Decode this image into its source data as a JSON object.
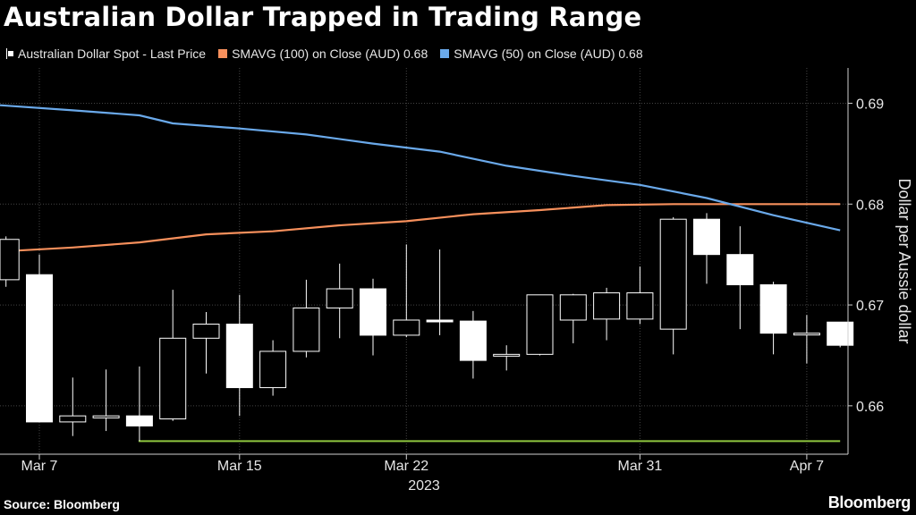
{
  "title": "Australian Dollar Trapped in Trading Range",
  "legend": [
    {
      "label": "Australian Dollar Spot - Last Price",
      "color": "#ffffff",
      "kind": "candle"
    },
    {
      "label": "SMAVG (100)  on Close (AUD) 0.68",
      "color": "#f7905c",
      "kind": "line"
    },
    {
      "label": "SMAVG (50)  on Close (AUD) 0.68",
      "color": "#6aa9ea",
      "kind": "line"
    }
  ],
  "source": "Source: Bloomberg",
  "brand": "Bloomberg",
  "colors": {
    "background": "#000000",
    "candle": "#ffffff",
    "sma100": "#f7905c",
    "sma50": "#6aa9ea",
    "support": "#8ec63f",
    "grid": "#444444"
  },
  "chart_data": {
    "type": "candlestick",
    "ylabel": "Dollar per Aussie dollar",
    "ylim": [
      0.6552,
      0.6935
    ],
    "yticks": [
      0.66,
      0.67,
      0.68,
      0.69
    ],
    "ytick_labels": [
      "0.66",
      "0.67",
      "0.68",
      "0.69"
    ],
    "xticks": [
      {
        "label": "Mar 7",
        "date": "2023-03-07"
      },
      {
        "label": "Mar 15",
        "date": "2023-03-15"
      },
      {
        "label": "Mar 22",
        "date": "2023-03-22"
      },
      {
        "label": "Mar 31",
        "date": "2023-03-31"
      },
      {
        "label": "Apr 7",
        "date": "2023-04-07"
      }
    ],
    "year_label": "2023",
    "candles": [
      {
        "date": "2023-03-06",
        "open": 0.6725,
        "high": 0.6768,
        "low": 0.6718,
        "close": 0.6765
      },
      {
        "date": "2023-03-07",
        "open": 0.673,
        "high": 0.675,
        "low": 0.6584,
        "close": 0.6584
      },
      {
        "date": "2023-03-08",
        "open": 0.6584,
        "high": 0.6628,
        "low": 0.657,
        "close": 0.659
      },
      {
        "date": "2023-03-09",
        "open": 0.6588,
        "high": 0.6636,
        "low": 0.6575,
        "close": 0.659
      },
      {
        "date": "2023-03-10",
        "open": 0.659,
        "high": 0.6639,
        "low": 0.6565,
        "close": 0.658
      },
      {
        "date": "2023-03-13",
        "open": 0.6587,
        "high": 0.6715,
        "low": 0.6585,
        "close": 0.6667
      },
      {
        "date": "2023-03-14",
        "open": 0.6667,
        "high": 0.6693,
        "low": 0.6632,
        "close": 0.6681
      },
      {
        "date": "2023-03-15",
        "open": 0.6681,
        "high": 0.671,
        "low": 0.659,
        "close": 0.6618
      },
      {
        "date": "2023-03-16",
        "open": 0.6618,
        "high": 0.6665,
        "low": 0.661,
        "close": 0.6654
      },
      {
        "date": "2023-03-17",
        "open": 0.6654,
        "high": 0.6725,
        "low": 0.6648,
        "close": 0.6697
      },
      {
        "date": "2023-03-20",
        "open": 0.6697,
        "high": 0.6741,
        "low": 0.6667,
        "close": 0.6716
      },
      {
        "date": "2023-03-21",
        "open": 0.6716,
        "high": 0.6726,
        "low": 0.665,
        "close": 0.667
      },
      {
        "date": "2023-03-22",
        "open": 0.667,
        "high": 0.676,
        "low": 0.6668,
        "close": 0.6685
      },
      {
        "date": "2023-03-23",
        "open": 0.6685,
        "high": 0.6755,
        "low": 0.667,
        "close": 0.6684
      },
      {
        "date": "2023-03-24",
        "open": 0.6684,
        "high": 0.6694,
        "low": 0.6627,
        "close": 0.6645
      },
      {
        "date": "2023-03-27",
        "open": 0.665,
        "high": 0.666,
        "low": 0.6635,
        "close": 0.6651
      },
      {
        "date": "2023-03-28",
        "open": 0.6651,
        "high": 0.671,
        "low": 0.665,
        "close": 0.671
      },
      {
        "date": "2023-03-29",
        "open": 0.6685,
        "high": 0.6711,
        "low": 0.6662,
        "close": 0.671
      },
      {
        "date": "2023-03-30",
        "open": 0.6686,
        "high": 0.6717,
        "low": 0.6665,
        "close": 0.6712
      },
      {
        "date": "2023-03-31",
        "open": 0.6686,
        "high": 0.6738,
        "low": 0.6681,
        "close": 0.6712
      },
      {
        "date": "2023-04-03",
        "open": 0.6676,
        "high": 0.6787,
        "low": 0.6651,
        "close": 0.6785
      },
      {
        "date": "2023-04-04",
        "open": 0.6785,
        "high": 0.6791,
        "low": 0.6721,
        "close": 0.675
      },
      {
        "date": "2023-04-05",
        "open": 0.675,
        "high": 0.6778,
        "low": 0.6676,
        "close": 0.672
      },
      {
        "date": "2023-04-06",
        "open": 0.672,
        "high": 0.6723,
        "low": 0.6651,
        "close": 0.6672
      },
      {
        "date": "2023-04-07",
        "open": 0.6672,
        "high": 0.669,
        "low": 0.6642,
        "close": 0.6672
      },
      {
        "date": "2023-04-10",
        "open": 0.6683,
        "high": 0.6683,
        "low": 0.6658,
        "close": 0.666
      }
    ],
    "series": [
      {
        "name": "SMAVG (100)  on Close (AUD) 0.68",
        "dates": [
          "2023-03-06",
          "2023-03-08",
          "2023-03-10",
          "2023-03-14",
          "2023-03-16",
          "2023-03-20",
          "2023-03-22",
          "2023-03-24",
          "2023-03-28",
          "2023-03-30",
          "2023-04-03",
          "2023-04-06",
          "2023-04-10"
        ],
        "values": [
          0.6753,
          0.6757,
          0.6762,
          0.677,
          0.6773,
          0.6779,
          0.6783,
          0.679,
          0.6794,
          0.6799,
          0.68,
          0.68,
          0.68
        ]
      },
      {
        "name": "SMAVG (50)  on Close (AUD) 0.68",
        "dates": [
          "2023-03-06",
          "2023-03-08",
          "2023-03-10",
          "2023-03-13",
          "2023-03-15",
          "2023-03-17",
          "2023-03-21",
          "2023-03-23",
          "2023-03-27",
          "2023-03-29",
          "2023-03-31",
          "2023-04-04",
          "2023-04-06",
          "2023-04-10"
        ],
        "values": [
          0.6898,
          0.6893,
          0.6888,
          0.688,
          0.6875,
          0.6869,
          0.686,
          0.6852,
          0.6838,
          0.6828,
          0.6819,
          0.6806,
          0.6789,
          0.6774
        ]
      }
    ],
    "support": {
      "value": 0.6565,
      "from": "2023-03-10",
      "to": "2023-04-10"
    }
  }
}
